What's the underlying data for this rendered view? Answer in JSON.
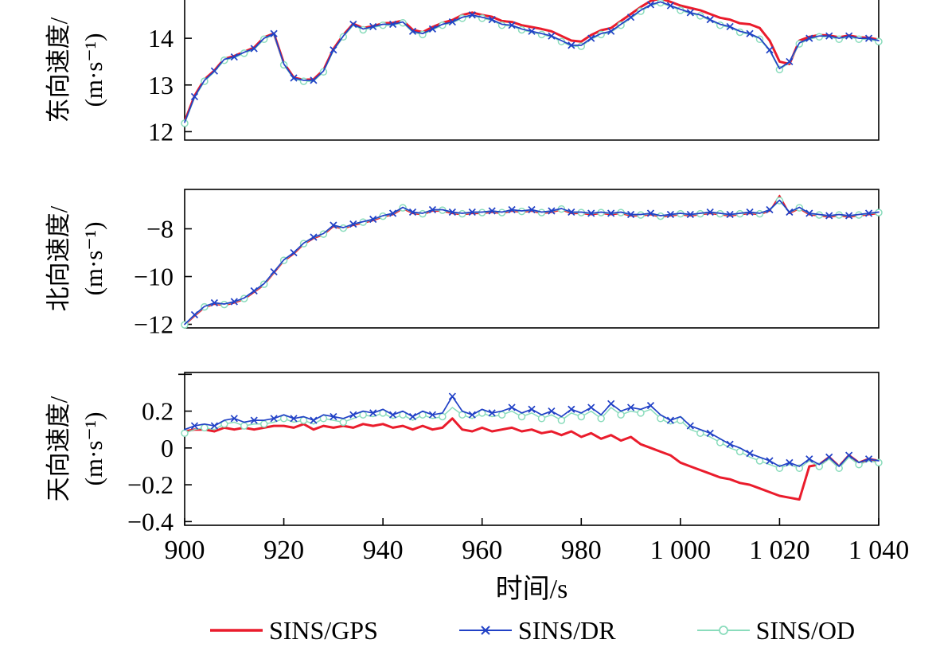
{
  "figure": {
    "legend": [
      {
        "name": "SINS/GPS",
        "color": "#ea1c2c",
        "marker": "none"
      },
      {
        "name": "SINS/DR",
        "color": "#2141c6",
        "marker": "x"
      },
      {
        "name": "SINS/OD",
        "color": "#8adcbc",
        "marker": "circle"
      }
    ],
    "axis_color": "#000000",
    "background": "#ffffff"
  },
  "chart_data": {
    "type": "line",
    "xlabel": "时间/s",
    "xlim": [
      900,
      1040
    ],
    "xtick_values": [
      900,
      920,
      940,
      960,
      980,
      1000,
      1020,
      1040
    ],
    "xtick_labels": [
      "900",
      "920",
      "940",
      "960",
      "980",
      "1 000",
      "1 020",
      "1 040"
    ],
    "grid": false,
    "legend_position": "bottom",
    "x": [
      900,
      902,
      904,
      906,
      908,
      910,
      912,
      914,
      916,
      918,
      920,
      922,
      924,
      926,
      928,
      930,
      932,
      934,
      936,
      938,
      940,
      942,
      944,
      946,
      948,
      950,
      952,
      954,
      956,
      958,
      960,
      962,
      964,
      966,
      968,
      970,
      972,
      974,
      976,
      978,
      980,
      982,
      984,
      986,
      988,
      990,
      992,
      994,
      996,
      998,
      1000,
      1002,
      1004,
      1006,
      1008,
      1010,
      1012,
      1014,
      1016,
      1018,
      1020,
      1022,
      1024,
      1026,
      1028,
      1030,
      1032,
      1034,
      1036,
      1038,
      1040
    ],
    "subplots": [
      {
        "ylabel": "东向速度/",
        "yunit": "(m·s⁻¹)",
        "ylim": [
          11.82,
          14.82
        ],
        "yticks": [
          {
            "v": 12,
            "label": "12"
          },
          {
            "v": 13,
            "label": "13"
          },
          {
            "v": 14,
            "label": "14"
          }
        ],
        "series": [
          {
            "name": "SINS/GPS",
            "color": "#ea1c2c",
            "marker": "none",
            "width": 3,
            "values": [
              12.22,
              12.77,
              13.12,
              13.31,
              13.56,
              13.62,
              13.71,
              13.8,
              14.02,
              14.1,
              13.47,
              13.16,
              13.11,
              13.12,
              13.32,
              13.77,
              14.07,
              14.31,
              14.22,
              14.26,
              14.32,
              14.33,
              14.38,
              14.18,
              14.13,
              14.24,
              14.33,
              14.39,
              14.5,
              14.55,
              14.5,
              14.46,
              14.37,
              14.35,
              14.28,
              14.24,
              14.2,
              14.15,
              14.05,
              13.95,
              13.93,
              14.07,
              14.17,
              14.22,
              14.37,
              14.52,
              14.67,
              14.8,
              14.85,
              14.78,
              14.7,
              14.65,
              14.6,
              14.52,
              14.44,
              14.4,
              14.32,
              14.3,
              14.22,
              13.95,
              13.5,
              13.45,
              13.95,
              14.03,
              14.07,
              14.06,
              14.02,
              14.06,
              14.02,
              14.01,
              13.97
            ]
          },
          {
            "name": "SINS/OD",
            "color": "#8adcbc",
            "marker": "circle",
            "width": 1.5,
            "values": [
              12.18,
              12.73,
              13.08,
              13.28,
              13.53,
              13.58,
              13.68,
              13.76,
              13.98,
              14.08,
              13.43,
              13.13,
              13.08,
              13.08,
              13.28,
              13.73,
              14.03,
              14.28,
              14.18,
              14.23,
              14.28,
              14.28,
              14.33,
              14.13,
              14.08,
              14.18,
              14.28,
              14.33,
              14.43,
              14.48,
              14.43,
              14.38,
              14.28,
              14.26,
              14.18,
              14.13,
              14.08,
              14.03,
              13.93,
              13.83,
              13.83,
              13.98,
              14.08,
              14.13,
              14.28,
              14.43,
              14.58,
              14.7,
              14.76,
              14.68,
              14.6,
              14.53,
              14.48,
              14.38,
              14.28,
              14.23,
              14.13,
              14.08,
              13.98,
              13.73,
              13.33,
              13.48,
              13.88,
              13.98,
              14.03,
              14.03,
              13.98,
              14.03,
              13.98,
              13.98,
              13.93
            ]
          },
          {
            "name": "SINS/DR",
            "color": "#2141c6",
            "marker": "x",
            "width": 1.7,
            "values": [
              12.2,
              12.75,
              13.1,
              13.3,
              13.55,
              13.6,
              13.7,
              13.78,
              14.0,
              14.1,
              13.45,
              13.15,
              13.1,
              13.1,
              13.3,
              13.75,
              14.05,
              14.3,
              14.2,
              14.25,
              14.3,
              14.3,
              14.35,
              14.15,
              14.1,
              14.2,
              14.3,
              14.35,
              14.45,
              14.5,
              14.45,
              14.4,
              14.3,
              14.28,
              14.2,
              14.15,
              14.1,
              14.05,
              13.95,
              13.85,
              13.85,
              14.0,
              14.1,
              14.15,
              14.3,
              14.45,
              14.6,
              14.72,
              14.78,
              14.7,
              14.62,
              14.55,
              14.5,
              14.4,
              14.3,
              14.25,
              14.15,
              14.1,
              14.0,
              13.75,
              13.35,
              13.5,
              13.9,
              14.0,
              14.05,
              14.05,
              14.0,
              14.05,
              14.0,
              14.0,
              13.95
            ]
          }
        ]
      },
      {
        "ylabel": "北向速度/",
        "yunit": "(m·s⁻¹)",
        "ylim": [
          -12.15,
          -6.35
        ],
        "yticks": [
          {
            "v": -8,
            "label": "−8"
          },
          {
            "v": -10,
            "label": "−10"
          },
          {
            "v": -12,
            "label": "−12"
          }
        ],
        "series": [
          {
            "name": "SINS/GPS",
            "color": "#ea1c2c",
            "marker": "none",
            "width": 1.6,
            "values": [
              -12.04,
              -11.66,
              -11.31,
              -11.16,
              -11.21,
              -11.11,
              -10.96,
              -10.66,
              -10.36,
              -9.86,
              -9.36,
              -9.06,
              -8.66,
              -8.41,
              -8.26,
              -7.91,
              -8.01,
              -7.86,
              -7.76,
              -7.66,
              -7.51,
              -7.41,
              -7.16,
              -7.36,
              -7.41,
              -7.26,
              -7.26,
              -7.36,
              -7.41,
              -7.36,
              -7.36,
              -7.31,
              -7.36,
              -7.26,
              -7.31,
              -7.26,
              -7.36,
              -7.31,
              -7.21,
              -7.36,
              -7.36,
              -7.41,
              -7.36,
              -7.41,
              -7.36,
              -7.46,
              -7.46,
              -7.41,
              -7.51,
              -7.46,
              -7.41,
              -7.46,
              -7.41,
              -7.36,
              -7.41,
              -7.46,
              -7.41,
              -7.36,
              -7.41,
              -7.26,
              -6.6,
              -7.36,
              -7.16,
              -7.41,
              -7.46,
              -7.51,
              -7.46,
              -7.51,
              -7.46,
              -7.41,
              -7.36
            ]
          },
          {
            "name": "SINS/OD",
            "color": "#8adcbc",
            "marker": "circle",
            "width": 1.5,
            "values": [
              -12.02,
              -11.62,
              -11.27,
              -11.12,
              -11.17,
              -11.07,
              -10.92,
              -10.62,
              -10.32,
              -9.82,
              -9.32,
              -9.02,
              -8.62,
              -8.37,
              -8.22,
              -7.87,
              -7.97,
              -7.82,
              -7.72,
              -7.62,
              -7.47,
              -7.37,
              -7.12,
              -7.32,
              -7.37,
              -7.22,
              -7.22,
              -7.32,
              -7.37,
              -7.32,
              -7.32,
              -7.27,
              -7.32,
              -7.22,
              -7.27,
              -7.22,
              -7.32,
              -7.27,
              -7.17,
              -7.32,
              -7.32,
              -7.37,
              -7.32,
              -7.37,
              -7.32,
              -7.42,
              -7.42,
              -7.37,
              -7.47,
              -7.42,
              -7.37,
              -7.42,
              -7.37,
              -7.32,
              -7.37,
              -7.42,
              -7.37,
              -7.32,
              -7.37,
              -7.22,
              -6.82,
              -7.32,
              -7.12,
              -7.37,
              -7.42,
              -7.47,
              -7.42,
              -7.47,
              -7.42,
              -7.37,
              -7.32
            ]
          },
          {
            "name": "SINS/DR",
            "color": "#2141c6",
            "marker": "x",
            "width": 1.7,
            "values": [
              -12.0,
              -11.6,
              -11.25,
              -11.1,
              -11.15,
              -11.05,
              -10.9,
              -10.6,
              -10.3,
              -9.8,
              -9.3,
              -9.0,
              -8.6,
              -8.35,
              -8.2,
              -7.85,
              -7.95,
              -7.8,
              -7.7,
              -7.6,
              -7.45,
              -7.35,
              -7.1,
              -7.3,
              -7.35,
              -7.2,
              -7.2,
              -7.3,
              -7.35,
              -7.3,
              -7.3,
              -7.25,
              -7.3,
              -7.2,
              -7.25,
              -7.2,
              -7.3,
              -7.25,
              -7.15,
              -7.3,
              -7.3,
              -7.35,
              -7.3,
              -7.35,
              -7.3,
              -7.4,
              -7.4,
              -7.35,
              -7.45,
              -7.4,
              -7.35,
              -7.4,
              -7.35,
              -7.3,
              -7.35,
              -7.4,
              -7.35,
              -7.3,
              -7.35,
              -7.2,
              -6.8,
              -7.3,
              -7.1,
              -7.35,
              -7.4,
              -7.45,
              -7.4,
              -7.45,
              -7.4,
              -7.35,
              -7.3
            ]
          }
        ]
      },
      {
        "ylabel": "天向速度/",
        "yunit": "(m·s⁻¹)",
        "ylim": [
          -0.42,
          0.41
        ],
        "yticks": [
          {
            "v": 0.4,
            "label": ""
          },
          {
            "v": 0.2,
            "label": "0.2"
          },
          {
            "v": 0,
            "label": "0"
          },
          {
            "v": -0.2,
            "label": "−0.2"
          },
          {
            "v": -0.4,
            "label": "−0.4"
          }
        ],
        "series": [
          {
            "name": "SINS/GPS",
            "color": "#ea1c2c",
            "marker": "none",
            "width": 3,
            "values": [
              0.09,
              0.1,
              0.1,
              0.09,
              0.11,
              0.1,
              0.11,
              0.1,
              0.11,
              0.12,
              0.12,
              0.11,
              0.13,
              0.1,
              0.12,
              0.11,
              0.12,
              0.11,
              0.13,
              0.12,
              0.13,
              0.11,
              0.12,
              0.1,
              0.12,
              0.1,
              0.11,
              0.16,
              0.1,
              0.09,
              0.11,
              0.09,
              0.1,
              0.11,
              0.09,
              0.1,
              0.08,
              0.09,
              0.07,
              0.09,
              0.06,
              0.08,
              0.05,
              0.07,
              0.04,
              0.06,
              0.02,
              0.0,
              -0.02,
              -0.04,
              -0.08,
              -0.1,
              -0.12,
              -0.14,
              -0.16,
              -0.17,
              -0.19,
              -0.2,
              -0.22,
              -0.24,
              -0.26,
              -0.27,
              -0.28,
              -0.1,
              -0.09,
              -0.05,
              -0.1,
              -0.04,
              -0.08,
              -0.06,
              -0.07
            ]
          },
          {
            "name": "SINS/OD",
            "color": "#8adcbc",
            "marker": "circle",
            "width": 1.5,
            "values": [
              0.08,
              0.1,
              0.11,
              0.1,
              0.13,
              0.14,
              0.12,
              0.13,
              0.13,
              0.14,
              0.16,
              0.14,
              0.15,
              0.13,
              0.16,
              0.15,
              0.14,
              0.16,
              0.18,
              0.17,
              0.19,
              0.16,
              0.18,
              0.15,
              0.18,
              0.16,
              0.17,
              0.22,
              0.18,
              0.16,
              0.19,
              0.17,
              0.18,
              0.2,
              0.17,
              0.19,
              0.16,
              0.18,
              0.15,
              0.19,
              0.17,
              0.2,
              0.16,
              0.22,
              0.18,
              0.2,
              0.19,
              0.21,
              0.16,
              0.13,
              0.15,
              0.1,
              0.08,
              0.06,
              0.03,
              0.0,
              -0.02,
              -0.05,
              -0.07,
              -0.09,
              -0.11,
              -0.09,
              -0.11,
              -0.07,
              -0.1,
              -0.06,
              -0.11,
              -0.05,
              -0.09,
              -0.07,
              -0.08
            ]
          },
          {
            "name": "SINS/DR",
            "color": "#2141c6",
            "marker": "x",
            "width": 1.7,
            "values": [
              0.1,
              0.12,
              0.13,
              0.12,
              0.15,
              0.16,
              0.14,
              0.15,
              0.15,
              0.16,
              0.18,
              0.16,
              0.17,
              0.15,
              0.18,
              0.17,
              0.16,
              0.18,
              0.2,
              0.19,
              0.21,
              0.18,
              0.2,
              0.17,
              0.2,
              0.18,
              0.19,
              0.28,
              0.2,
              0.18,
              0.21,
              0.19,
              0.2,
              0.22,
              0.19,
              0.21,
              0.18,
              0.2,
              0.17,
              0.21,
              0.19,
              0.22,
              0.18,
              0.24,
              0.2,
              0.22,
              0.21,
              0.23,
              0.18,
              0.15,
              0.17,
              0.12,
              0.1,
              0.08,
              0.05,
              0.02,
              0.0,
              -0.03,
              -0.05,
              -0.07,
              -0.1,
              -0.08,
              -0.1,
              -0.06,
              -0.09,
              -0.05,
              -0.1,
              -0.04,
              -0.08,
              -0.06,
              -0.07
            ]
          }
        ]
      }
    ]
  }
}
